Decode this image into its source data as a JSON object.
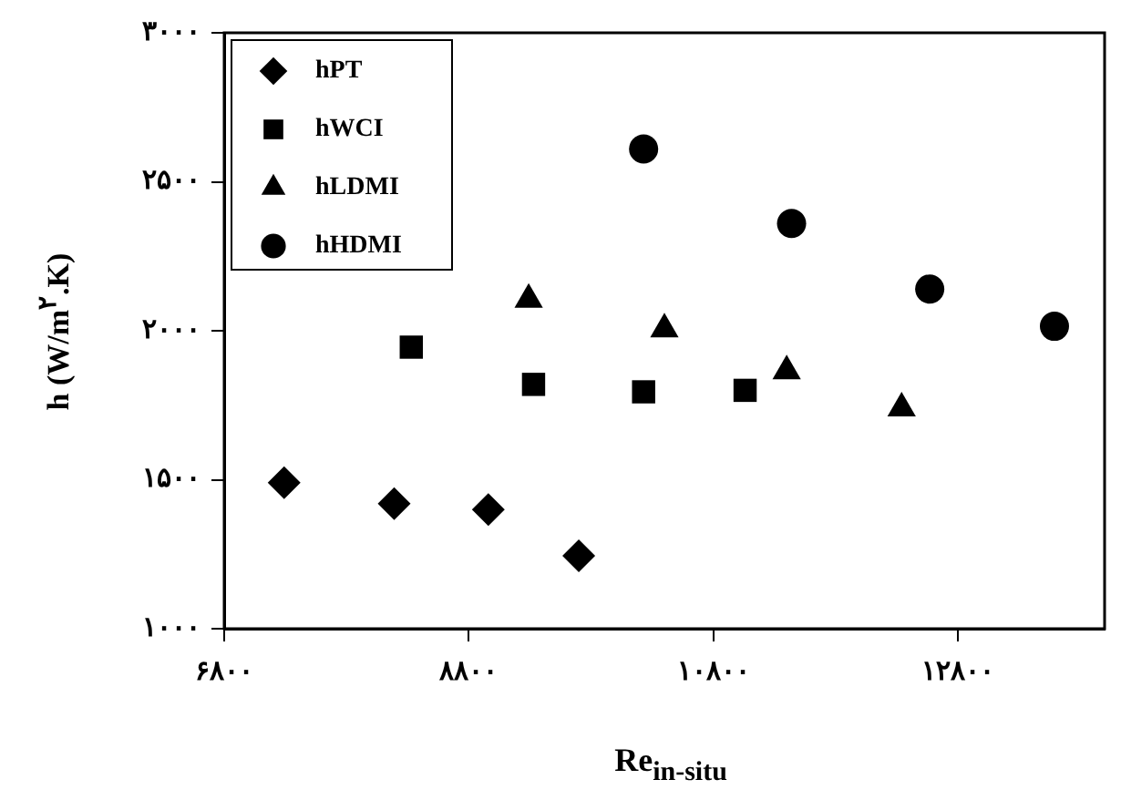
{
  "chart_data": {
    "type": "scatter",
    "xlabel": "Re$_{in-situ}$",
    "ylabel": "h (W/m$^{۲}$.K)",
    "xlim": [
      6800,
      14000
    ],
    "xticks": [
      {
        "value": 6800,
        "label": "۶۸۰۰"
      },
      {
        "value": 8800,
        "label": "۸۸۰۰"
      },
      {
        "value": 10800,
        "label": "۱۰۸۰۰"
      },
      {
        "value": 12800,
        "label": "۱۲۸۰۰"
      }
    ],
    "ylim": [
      1000,
      3000
    ],
    "yticks": [
      {
        "value": 1000,
        "label": "۱۰۰۰"
      },
      {
        "value": 1500,
        "label": "۱۵۰۰"
      },
      {
        "value": 2000,
        "label": "۲۰۰۰"
      },
      {
        "value": 2500,
        "label": "۲۵۰۰"
      },
      {
        "value": 3000,
        "label": "۳۰۰۰"
      }
    ],
    "legend": "top left",
    "series": [
      {
        "name": "hPT",
        "color": "#000000",
        "marker": "diamond",
        "x": [
          7290,
          8190,
          8960,
          9700
        ],
        "values": [
          1490,
          1420,
          1400,
          1245
        ]
      },
      {
        "name": "hWCI",
        "color": "#000000",
        "marker": "square",
        "x": [
          8330,
          9330,
          10230,
          11060
        ],
        "values": [
          1945,
          1820,
          1795,
          1800
        ]
      },
      {
        "name": "hLDMI",
        "color": "#000000",
        "marker": "triangle",
        "x": [
          9290,
          10400,
          11400,
          12340
        ],
        "values": [
          2105,
          2005,
          1865,
          1740
        ]
      },
      {
        "name": "hHDMI",
        "color": "#000000",
        "marker": "circle",
        "x": [
          10230,
          11440,
          12570,
          13590
        ],
        "values": [
          2610,
          2360,
          2140,
          2015
        ]
      }
    ]
  }
}
